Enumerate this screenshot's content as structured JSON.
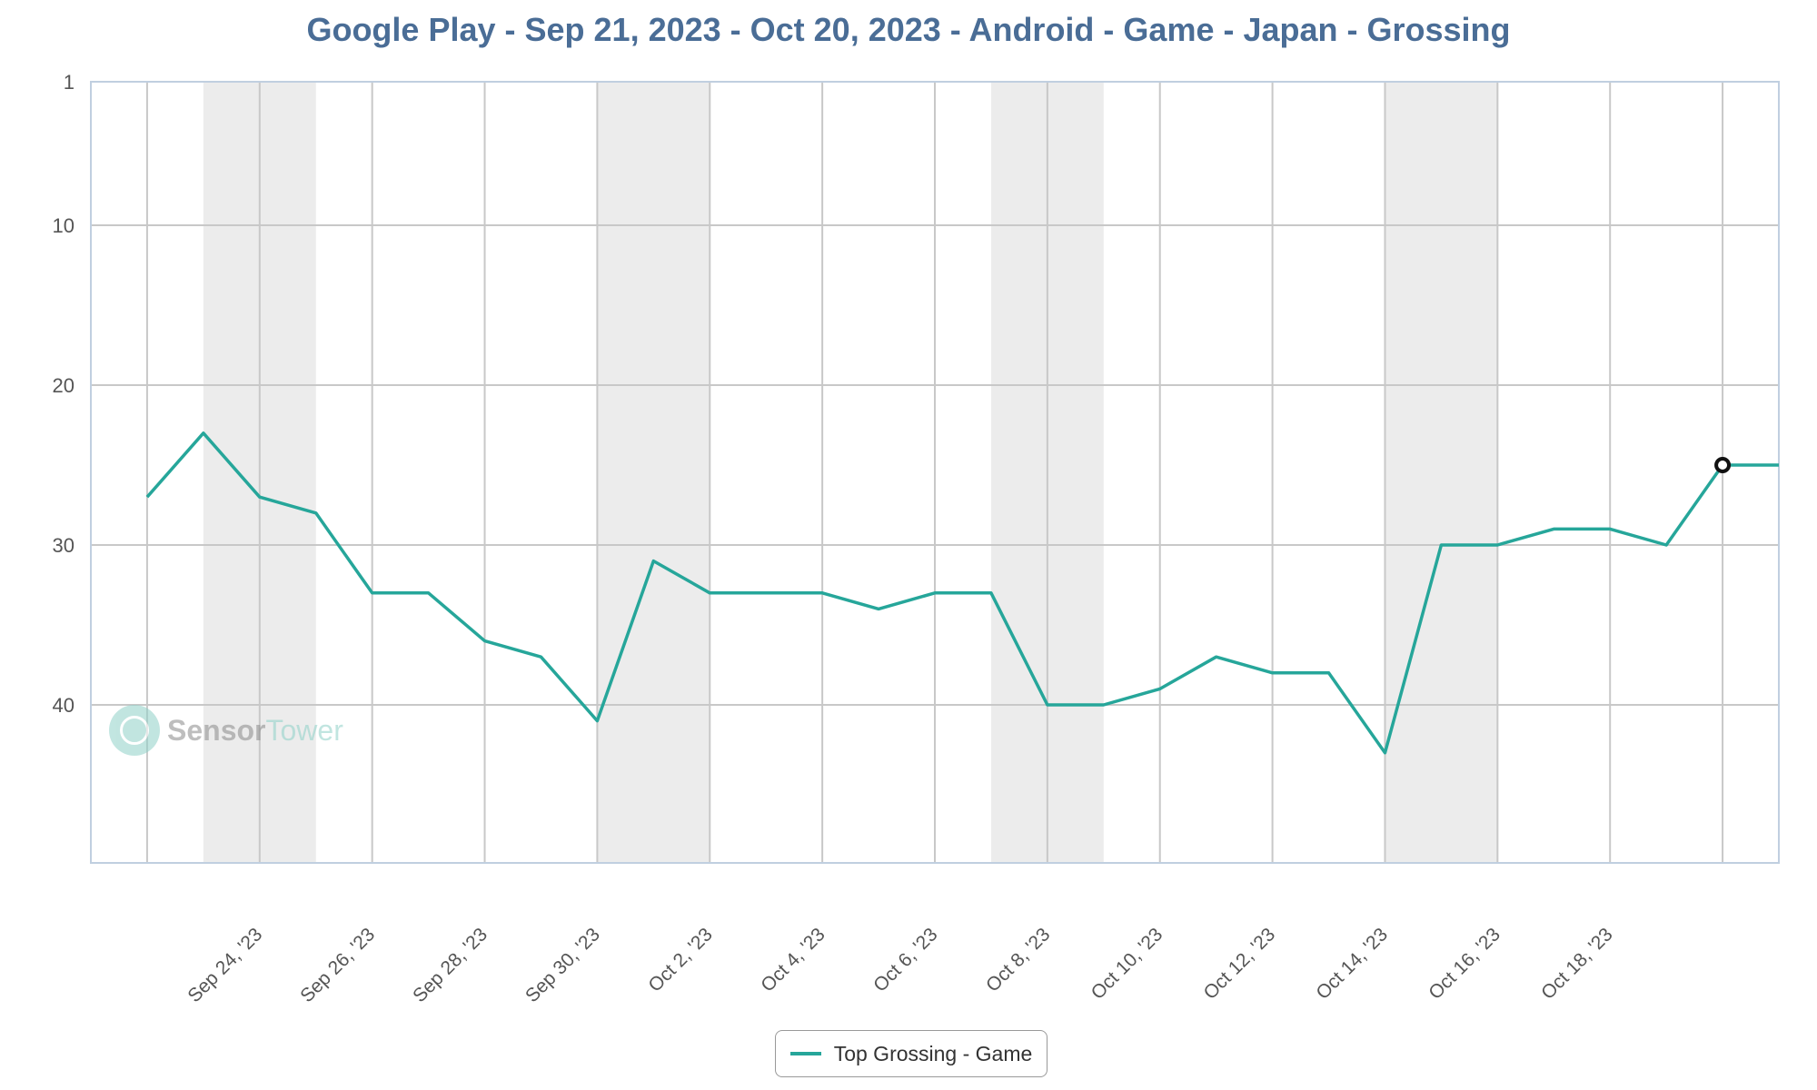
{
  "title": "Google Play - Sep 21, 2023 - Oct 20, 2023 - Android - Game - Japan - Grossing",
  "watermark": {
    "part1": "Sensor",
    "part2": "Tower"
  },
  "colors": {
    "title": "#4a6d96",
    "series": "#26a69a",
    "band": "#ececec",
    "grid": "#c8c8c8",
    "axis": "#c0cfe0"
  },
  "chart_data": {
    "type": "line",
    "title": "Google Play - Sep 21, 2023 - Oct 20, 2023 - Android - Game - Japan - Grossing",
    "xlabel": "",
    "ylabel": "",
    "y_reversed": true,
    "ylim": [
      1,
      50
    ],
    "yticks": [
      1,
      10,
      20,
      30,
      40
    ],
    "x_range": [
      "2023-09-21",
      "2023-10-21"
    ],
    "xticks": [
      {
        "date": "2023-09-24",
        "label": "Sep 24, '23"
      },
      {
        "date": "2023-09-26",
        "label": "Sep 26, '23"
      },
      {
        "date": "2023-09-28",
        "label": "Sep 28, '23"
      },
      {
        "date": "2023-09-30",
        "label": "Sep 30, '23"
      },
      {
        "date": "2023-10-02",
        "label": "Oct 2, '23"
      },
      {
        "date": "2023-10-04",
        "label": "Oct 4, '23"
      },
      {
        "date": "2023-10-06",
        "label": "Oct 6, '23"
      },
      {
        "date": "2023-10-08",
        "label": "Oct 8, '23"
      },
      {
        "date": "2023-10-10",
        "label": "Oct 10, '23"
      },
      {
        "date": "2023-10-12",
        "label": "Oct 12, '23"
      },
      {
        "date": "2023-10-14",
        "label": "Oct 14, '23"
      },
      {
        "date": "2023-10-16",
        "label": "Oct 16, '23"
      },
      {
        "date": "2023-10-18",
        "label": "Oct 18, '23"
      }
    ],
    "weekend_bands": [
      [
        "2023-09-23",
        "2023-09-25"
      ],
      [
        "2023-09-30",
        "2023-10-02"
      ],
      [
        "2023-10-07",
        "2023-10-09"
      ],
      [
        "2023-10-14",
        "2023-10-16"
      ]
    ],
    "grid": true,
    "legend_position": "bottom-center",
    "series": [
      {
        "name": "Top Grossing - Game",
        "color": "#26a69a",
        "dates": [
          "2023-09-22",
          "2023-09-23",
          "2023-09-24",
          "2023-09-25",
          "2023-09-26",
          "2023-09-27",
          "2023-09-28",
          "2023-09-29",
          "2023-09-30",
          "2023-10-01",
          "2023-10-02",
          "2023-10-03",
          "2023-10-04",
          "2023-10-05",
          "2023-10-06",
          "2023-10-07",
          "2023-10-08",
          "2023-10-09",
          "2023-10-10",
          "2023-10-11",
          "2023-10-12",
          "2023-10-13",
          "2023-10-14",
          "2023-10-15",
          "2023-10-16",
          "2023-10-17",
          "2023-10-18",
          "2023-10-19",
          "2023-10-20",
          "2023-10-21"
        ],
        "values": [
          27,
          23,
          27,
          28,
          33,
          33,
          36,
          37,
          41,
          31,
          33,
          33,
          33,
          34,
          33,
          33,
          40,
          40,
          39,
          37,
          38,
          38,
          43,
          30,
          30,
          29,
          29,
          30,
          25,
          25
        ],
        "highlight_date": "2023-10-20"
      }
    ]
  }
}
